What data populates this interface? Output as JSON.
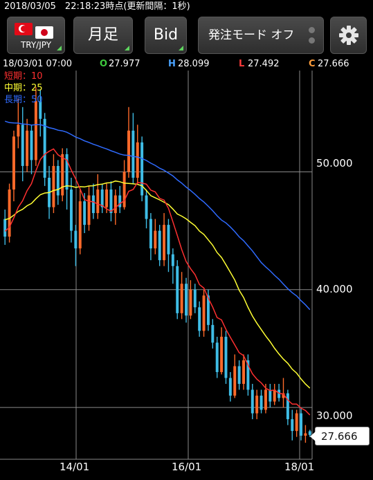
{
  "status": {
    "text": "2018/03/05　22:18:23時点(更新間隔：1秒)"
  },
  "toolbar": {
    "pair": "TRY/JPY",
    "period": "月足",
    "price_type": "Bid",
    "order_mode": "発注モード オフ",
    "accent": "#5fd65f"
  },
  "ohlc": {
    "datetime": "18/03/01 07:00",
    "o_label": "O",
    "o_value": "27.977",
    "h_label": "H",
    "h_value": "28.099",
    "l_label": "L",
    "l_value": "27.492",
    "c_label": "C",
    "c_value": "27.666",
    "colors": {
      "o": "#3ec93e",
      "h": "#4aa3ff",
      "l": "#ff3b3b",
      "c": "#ff9d3b"
    }
  },
  "legend": {
    "short": "短期：10",
    "mid": "中期：25",
    "long": "長期：50",
    "colors": {
      "short": "#ff3030",
      "mid": "#ffff33",
      "long": "#2f6bff"
    }
  },
  "chart_data": {
    "type": "candlestick",
    "y_ticks": [
      "50.000",
      "40.000",
      "30.000"
    ],
    "x_ticks": [
      "14/01",
      "16/01",
      "18/01"
    ],
    "last_price": "27.666",
    "ylim": [
      25.6,
      58.6
    ],
    "up_color": "#ff6a2a",
    "down_color": "#3fbde6",
    "candles": [
      [
        46.0,
        44.5,
        46.8,
        43.8
      ],
      [
        44.5,
        48.5,
        49.0,
        44.0
      ],
      [
        48.5,
        53.0,
        53.5,
        47.5
      ],
      [
        53.0,
        54.0,
        56.2,
        52.0
      ],
      [
        54.0,
        50.5,
        55.5,
        49.2
      ],
      [
        50.5,
        53.5,
        54.5,
        50.0
      ],
      [
        53.5,
        51.0,
        54.0,
        49.8
      ],
      [
        51.0,
        56.0,
        57.2,
        50.5
      ],
      [
        56.0,
        54.5,
        57.0,
        53.0
      ],
      [
        54.5,
        49.5,
        55.0,
        48.8
      ],
      [
        49.5,
        47.0,
        50.5,
        46.0
      ],
      [
        47.0,
        50.5,
        51.5,
        46.5
      ],
      [
        50.5,
        48.0,
        51.0,
        47.2
      ],
      [
        48.0,
        51.5,
        52.0,
        47.5
      ],
      [
        51.5,
        48.5,
        52.0,
        46.8
      ],
      [
        48.5,
        45.0,
        49.5,
        44.0
      ],
      [
        45.0,
        43.5,
        45.5,
        42.0
      ],
      [
        43.5,
        47.5,
        48.5,
        43.0
      ],
      [
        47.5,
        45.5,
        48.2,
        44.8
      ],
      [
        45.5,
        48.0,
        48.8,
        45.0
      ],
      [
        48.0,
        46.5,
        49.0,
        46.0
      ],
      [
        46.5,
        48.5,
        49.8,
        46.0
      ],
      [
        48.5,
        47.0,
        49.0,
        46.5
      ],
      [
        47.0,
        48.5,
        49.0,
        46.5
      ],
      [
        48.5,
        46.5,
        49.2,
        45.8
      ],
      [
        46.5,
        48.0,
        48.5,
        45.5
      ],
      [
        48.0,
        47.0,
        48.8,
        46.5
      ],
      [
        47.0,
        50.0,
        51.0,
        46.8
      ],
      [
        50.0,
        53.5,
        55.5,
        49.5
      ],
      [
        53.5,
        49.5,
        55.0,
        49.0
      ],
      [
        49.5,
        52.5,
        54.0,
        49.0
      ],
      [
        52.5,
        48.0,
        53.0,
        47.5
      ],
      [
        48.0,
        46.0,
        48.5,
        45.2
      ],
      [
        46.0,
        43.5,
        46.5,
        42.5
      ],
      [
        43.5,
        45.0,
        46.0,
        43.0
      ],
      [
        45.0,
        42.5,
        45.5,
        42.0
      ],
      [
        42.5,
        45.5,
        46.5,
        42.0
      ],
      [
        45.5,
        43.0,
        46.0,
        41.5
      ],
      [
        43.0,
        42.0,
        43.5,
        40.5
      ],
      [
        42.0,
        38.0,
        42.5,
        37.5
      ],
      [
        38.0,
        40.5,
        41.5,
        37.5
      ],
      [
        40.5,
        37.8,
        41.0,
        37.2
      ],
      [
        37.8,
        40.0,
        40.8,
        37.5
      ],
      [
        40.0,
        38.5,
        40.5,
        38.0
      ],
      [
        38.5,
        36.5,
        39.0,
        36.0
      ],
      [
        36.5,
        39.5,
        40.0,
        36.0
      ],
      [
        39.5,
        37.0,
        40.0,
        36.5
      ],
      [
        37.0,
        35.5,
        37.5,
        35.0
      ],
      [
        35.5,
        33.0,
        36.0,
        32.5
      ],
      [
        33.0,
        36.0,
        36.8,
        32.8
      ],
      [
        36.0,
        32.5,
        36.5,
        32.0
      ],
      [
        32.5,
        31.0,
        33.0,
        30.5
      ],
      [
        31.0,
        33.5,
        34.5,
        30.8
      ],
      [
        33.5,
        32.0,
        34.0,
        31.5
      ],
      [
        32.0,
        34.0,
        34.5,
        31.5
      ],
      [
        34.0,
        31.5,
        34.5,
        31.0
      ],
      [
        31.5,
        29.5,
        32.0,
        29.0
      ],
      [
        29.5,
        31.0,
        31.5,
        29.0
      ],
      [
        31.0,
        29.8,
        31.5,
        29.5
      ],
      [
        29.8,
        31.5,
        32.0,
        29.5
      ],
      [
        31.5,
        30.5,
        32.0,
        30.0
      ],
      [
        30.5,
        31.5,
        32.0,
        30.2
      ],
      [
        31.5,
        30.8,
        32.0,
        30.5
      ],
      [
        30.8,
        31.2,
        32.5,
        30.0
      ],
      [
        31.2,
        29.0,
        31.5,
        28.5
      ],
      [
        29.0,
        28.0,
        29.8,
        27.2
      ],
      [
        28.0,
        29.5,
        29.8,
        27.5
      ],
      [
        29.5,
        27.6,
        30.0,
        27.2
      ],
      [
        27.6,
        27.8,
        28.5,
        27.0
      ],
      [
        27.977,
        27.666,
        28.099,
        27.492
      ]
    ]
  }
}
